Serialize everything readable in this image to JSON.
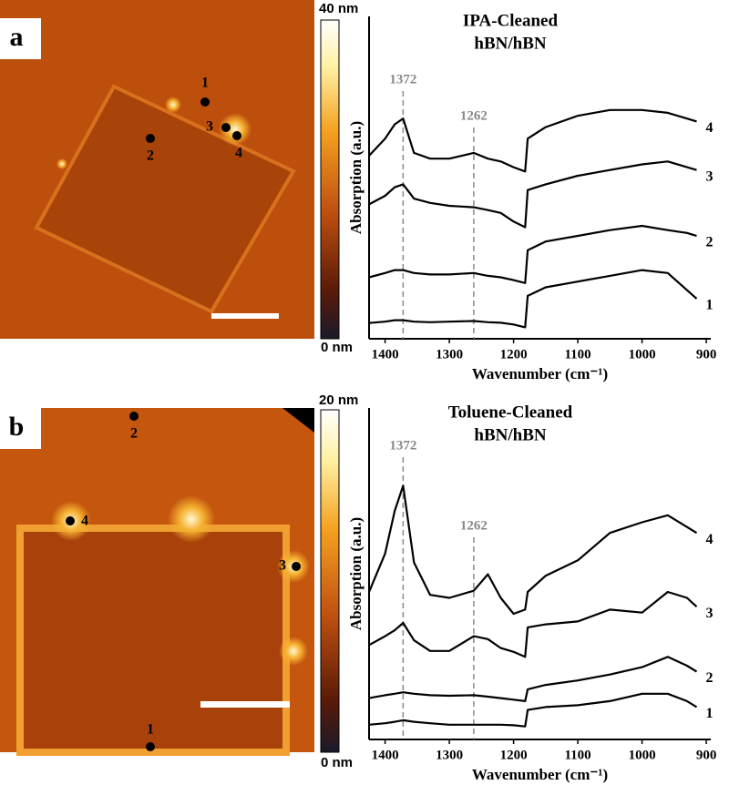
{
  "panels": [
    {
      "label": "a",
      "colorbar_max": "40 nm",
      "colorbar_min": "0 nm",
      "points": [
        "1",
        "2",
        "3",
        "4"
      ]
    },
    {
      "label": "b",
      "colorbar_max": "20 nm",
      "colorbar_min": "0 nm",
      "points": [
        "1",
        "2",
        "3",
        "4"
      ]
    }
  ],
  "chart_data": [
    {
      "type": "line",
      "title": [
        "IPA-Cleaned",
        "hBN/hBN"
      ],
      "x_label": "Wavenumber (cm⁻¹)",
      "y_label": "Absorption (a.u.)",
      "x": [
        1425,
        1400,
        1385,
        1372,
        1355,
        1330,
        1300,
        1262,
        1240,
        1220,
        1200,
        1182,
        1178,
        1150,
        1100,
        1050,
        1000,
        960,
        930,
        915
      ],
      "xlim": [
        1425,
        893
      ],
      "ylim": [
        0,
        100
      ],
      "xticks": [
        1400,
        1300,
        1200,
        1100,
        1000,
        900
      ],
      "markers": [
        1372,
        1262
      ],
      "series": [
        {
          "name": "1",
          "color": "#000000",
          "values": [
            5.5,
            6,
            6.5,
            6.5,
            6,
            5.8,
            6,
            6.2,
            5.8,
            5.6,
            5,
            4,
            15,
            18,
            20,
            22,
            24,
            23,
            17,
            14
          ]
        },
        {
          "name": "2",
          "color": "#000000",
          "values": [
            21.5,
            23,
            24,
            24,
            23,
            22.5,
            22.5,
            23,
            22,
            21.5,
            20.5,
            19.5,
            31,
            34,
            36,
            38,
            39.5,
            38,
            37,
            36
          ]
        },
        {
          "name": "3",
          "color": "#000000",
          "values": [
            47,
            50,
            53,
            54,
            49,
            47.5,
            46.5,
            46,
            45,
            44,
            41,
            39,
            52,
            54,
            57,
            59,
            61,
            62,
            60,
            59
          ]
        },
        {
          "name": "4",
          "color": "#000000",
          "values": [
            64,
            70,
            75,
            77,
            65,
            63,
            63,
            65,
            63,
            62,
            60,
            58.5,
            70,
            74,
            78,
            80,
            80,
            79,
            77,
            76
          ]
        }
      ]
    },
    {
      "type": "line",
      "title": [
        "Toluene-Cleaned",
        "hBN/hBN"
      ],
      "x_label": "Wavenumber (cm⁻¹)",
      "y_label": "Absorption (a.u.)",
      "x": [
        1425,
        1400,
        1385,
        1372,
        1355,
        1330,
        1300,
        1262,
        1240,
        1220,
        1200,
        1182,
        1178,
        1150,
        1100,
        1050,
        1000,
        960,
        930,
        915
      ],
      "xlim": [
        1425,
        893
      ],
      "ylim": [
        0,
        100
      ],
      "xticks": [
        1400,
        1300,
        1200,
        1100,
        1000,
        900
      ],
      "markers": [
        1372,
        1262
      ],
      "series": [
        {
          "name": "1",
          "color": "#000000",
          "values": [
            5,
            5.5,
            6,
            6.5,
            6,
            5.5,
            5,
            5,
            5,
            5,
            4.8,
            4.4,
            10,
            11,
            11.6,
            13,
            15.5,
            15.5,
            13,
            11
          ]
        },
        {
          "name": "2",
          "color": "#000000",
          "values": [
            14,
            15,
            15.5,
            16,
            15.5,
            15,
            14.8,
            15,
            14.5,
            14,
            13.5,
            13,
            17,
            18.5,
            20,
            22,
            24.5,
            28,
            25,
            23
          ]
        },
        {
          "name": "3",
          "color": "#000000",
          "values": [
            32,
            35,
            37,
            39.5,
            33.6,
            30,
            30,
            35,
            34,
            31,
            29.7,
            28,
            38,
            39,
            40,
            44,
            43,
            50,
            48,
            45
          ]
        },
        {
          "name": "4",
          "color": "#000000",
          "values": [
            50,
            63,
            77.5,
            86,
            60,
            49,
            48,
            50.4,
            56,
            48,
            42.6,
            44,
            50,
            55.5,
            60.7,
            70,
            73.6,
            76,
            72,
            70
          ]
        }
      ]
    }
  ]
}
